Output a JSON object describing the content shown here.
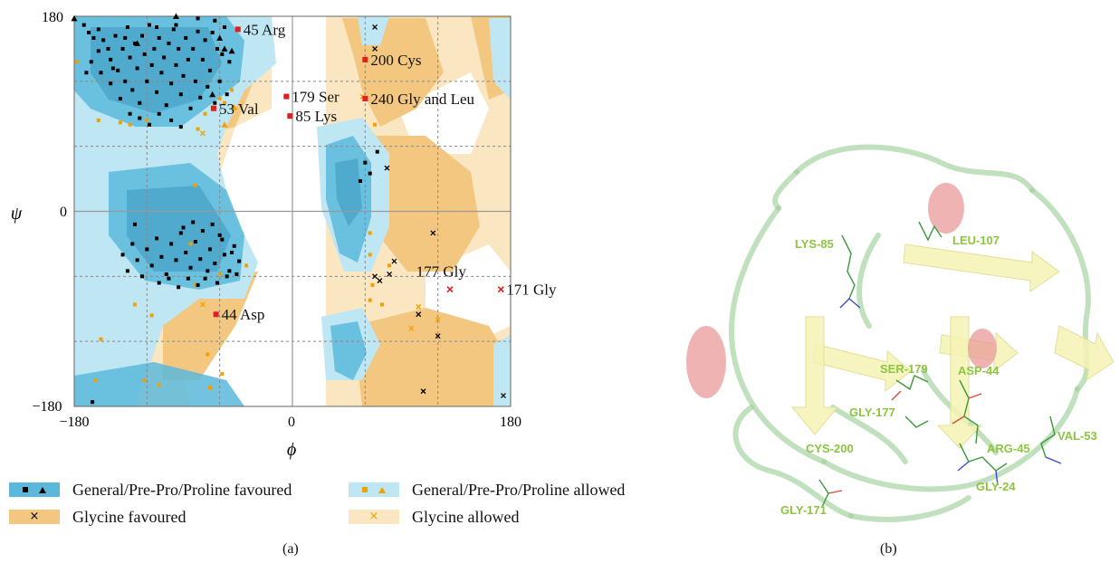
{
  "panels": {
    "a": "(a)",
    "b": "(b)"
  },
  "chart_data": {
    "type": "scatter",
    "xlabel": "ϕ",
    "ylabel": "ψ",
    "xlim": [
      -180,
      180
    ],
    "ylim": [
      -180,
      180
    ],
    "x_ticks": [
      "−180",
      "0",
      "180"
    ],
    "y_ticks": [
      "180",
      "0",
      "−180"
    ],
    "grid": true,
    "legend": [
      {
        "label": "General/Pre-Pro/Proline favoured",
        "swatch": "#5bb8da",
        "markers": [
          "square",
          "triangle"
        ],
        "marker_color": "#000000"
      },
      {
        "label": "General/Pre-Pro/Proline allowed",
        "swatch": "#bfe6f3",
        "markers": [
          "square",
          "triangle"
        ],
        "marker_color": "#f0a000"
      },
      {
        "label": "Glycine favoured",
        "swatch": "#f3c77f",
        "markers": [
          "x"
        ],
        "marker_color": "#000000"
      },
      {
        "label": "Glycine allowed",
        "swatch": "#fbe6c2",
        "markers": [
          "x"
        ],
        "marker_color": "#f0a000"
      }
    ],
    "outliers": [
      {
        "label": "45 Arg",
        "phi": -45,
        "psi": 168
      },
      {
        "label": "200 Cys",
        "phi": 60,
        "psi": 140
      },
      {
        "label": "179 Ser",
        "phi": -5,
        "psi": 106
      },
      {
        "label": "240 Gly and Leu",
        "phi": 60,
        "psi": 104
      },
      {
        "label": "53 Val",
        "phi": -65,
        "psi": 95
      },
      {
        "label": "85 Lys",
        "phi": -2,
        "psi": 88
      },
      {
        "label": "177 Gly",
        "phi": 130,
        "psi": -72
      },
      {
        "label": "171 Gly",
        "phi": 172,
        "psi": -72
      },
      {
        "label": "44 Asp",
        "phi": -63,
        "psi": -95
      }
    ],
    "general_favoured_points": [
      [
        -172,
        172
      ],
      [
        -168,
        165
      ],
      [
        -164,
        160
      ],
      [
        -160,
        168
      ],
      [
        -156,
        158
      ],
      [
        -152,
        150
      ],
      [
        -150,
        140
      ],
      [
        -146,
        162
      ],
      [
        -144,
        130
      ],
      [
        -140,
        150
      ],
      [
        -138,
        120
      ],
      [
        -136,
        170
      ],
      [
        -134,
        142
      ],
      [
        -132,
        112
      ],
      [
        -130,
        155
      ],
      [
        -128,
        132
      ],
      [
        -126,
        100
      ],
      [
        -124,
        162
      ],
      [
        -122,
        145
      ],
      [
        -120,
        120
      ],
      [
        -118,
        172
      ],
      [
        -116,
        135
      ],
      [
        -114,
        150
      ],
      [
        -112,
        110
      ],
      [
        -110,
        160
      ],
      [
        -108,
        128
      ],
      [
        -106,
        142
      ],
      [
        -104,
        98
      ],
      [
        -102,
        155
      ],
      [
        -100,
        118
      ],
      [
        -98,
        168
      ],
      [
        -96,
        135
      ],
      [
        -94,
        150
      ],
      [
        -92,
        108
      ],
      [
        -90,
        125
      ],
      [
        -88,
        160
      ],
      [
        -86,
        140
      ],
      [
        -84,
        95
      ],
      [
        -82,
        150
      ],
      [
        -80,
        120
      ],
      [
        -78,
        166
      ],
      [
        -76,
        105
      ],
      [
        -74,
        140
      ],
      [
        -72,
        158
      ],
      [
        -70,
        115
      ],
      [
        -68,
        130
      ],
      [
        -66,
        165
      ],
      [
        -64,
        100
      ],
      [
        -62,
        150
      ],
      [
        -60,
        120
      ],
      [
        -58,
        145
      ],
      [
        -56,
        170
      ],
      [
        -54,
        108
      ],
      [
        -52,
        138
      ],
      [
        -150,
        118
      ],
      [
        -142,
        104
      ],
      [
        -134,
        90
      ],
      [
        -126,
        86
      ],
      [
        -118,
        80
      ],
      [
        -110,
        90
      ],
      [
        -100,
        84
      ],
      [
        -92,
        78
      ],
      [
        -160,
        148
      ],
      [
        -166,
        138
      ],
      [
        -170,
        128
      ],
      [
        -158,
        128
      ],
      [
        -148,
        132
      ],
      [
        -138,
        160
      ],
      [
        -112,
        170
      ],
      [
        -96,
        172
      ],
      [
        -78,
        178
      ],
      [
        -64,
        176
      ],
      [
        -140,
        -40
      ],
      [
        -136,
        -55
      ],
      [
        -132,
        -30
      ],
      [
        -128,
        -45
      ],
      [
        -124,
        -60
      ],
      [
        -120,
        -35
      ],
      [
        -116,
        -50
      ],
      [
        -112,
        -25
      ],
      [
        -108,
        -42
      ],
      [
        -104,
        -58
      ],
      [
        -100,
        -30
      ],
      [
        -96,
        -45
      ],
      [
        -92,
        -20
      ],
      [
        -88,
        -38
      ],
      [
        -84,
        -52
      ],
      [
        -80,
        -28
      ],
      [
        -76,
        -44
      ],
      [
        -72,
        -62
      ],
      [
        -68,
        -35
      ],
      [
        -64,
        -48
      ],
      [
        -60,
        -22
      ],
      [
        -56,
        -40
      ],
      [
        -52,
        -55
      ],
      [
        -48,
        -32
      ],
      [
        -44,
        -46
      ],
      [
        -90,
        -15
      ],
      [
        -82,
        -10
      ],
      [
        -74,
        -18
      ],
      [
        -66,
        -12
      ],
      [
        -58,
        -26
      ],
      [
        -86,
        -62
      ],
      [
        -78,
        -68
      ],
      [
        -70,
        -55
      ],
      [
        -62,
        -66
      ],
      [
        -54,
        -60
      ],
      [
        -94,
        -70
      ],
      [
        -102,
        -62
      ],
      [
        -110,
        -66
      ],
      [
        -50,
        -38
      ],
      [
        -46,
        -58
      ],
      [
        -130,
        -12
      ],
      [
        60,
        45
      ],
      [
        64,
        35
      ],
      [
        56,
        28
      ],
      [
        70,
        55
      ],
      [
        -165,
        -176
      ]
    ],
    "general_favoured_triangles": [
      [
        -180,
        178
      ],
      [
        -96,
        180
      ],
      [
        -60,
        160
      ],
      [
        -56,
        150
      ],
      [
        -50,
        148
      ],
      [
        -66,
        108
      ],
      [
        -128,
        155
      ]
    ],
    "general_allowed_points": [
      [
        -178,
        138
      ],
      [
        -160,
        84
      ],
      [
        -142,
        82
      ],
      [
        -134,
        80
      ],
      [
        -120,
        84
      ],
      [
        -78,
        76
      ],
      [
        -72,
        90
      ],
      [
        -56,
        100
      ],
      [
        -60,
        104
      ],
      [
        -66,
        96
      ],
      [
        -50,
        112
      ],
      [
        -70,
        -132
      ],
      [
        -58,
        -150
      ],
      [
        -130,
        -86
      ],
      [
        -116,
        -96
      ],
      [
        -80,
        -68
      ],
      [
        -158,
        -118
      ],
      [
        -162,
        -156
      ],
      [
        -122,
        -156
      ],
      [
        -84,
        -30
      ],
      [
        -80,
        24
      ],
      [
        -38,
        -50
      ],
      [
        -60,
        -58
      ],
      [
        64,
        -20
      ],
      [
        80,
        -50
      ],
      [
        66,
        -68
      ],
      [
        64,
        -82
      ],
      [
        74,
        -86
      ],
      [
        68,
        80
      ],
      [
        60,
        105
      ],
      [
        64,
        -40
      ],
      [
        -110,
        -160
      ]
    ],
    "general_allowed_triangles": [
      [
        -68,
        -162
      ],
      [
        -56,
        80
      ],
      [
        -48,
        96
      ]
    ],
    "glycine_favoured_points": [
      [
        84,
        -46
      ],
      [
        80,
        -58
      ],
      [
        68,
        -60
      ],
      [
        72,
        -64
      ],
      [
        68,
        170
      ],
      [
        116,
        -20
      ],
      [
        120,
        -115
      ],
      [
        104,
        -95
      ],
      [
        108,
        -166
      ],
      [
        174,
        -170
      ],
      [
        68,
        150
      ],
      [
        78,
        40
      ]
    ],
    "glycine_allowed_points": [
      [
        -74,
        72
      ],
      [
        -74,
        -86
      ],
      [
        130,
        -72
      ],
      [
        172,
        -72
      ],
      [
        104,
        -88
      ],
      [
        98,
        -108
      ],
      [
        58,
        106
      ],
      [
        120,
        -100
      ]
    ]
  },
  "structure": {
    "residue_labels": [
      "LYS-85",
      "LEU-107",
      "SER-179",
      "ASP-44",
      "GLY-177",
      "CYS-200",
      "ARG-45",
      "VAL-53",
      "GLY-24",
      "GLY-171"
    ],
    "colors": {
      "coil": "#9fd09a",
      "sheet": "#f5f3b4",
      "helix": "#e99a9a",
      "label": "#8cc63f"
    }
  }
}
